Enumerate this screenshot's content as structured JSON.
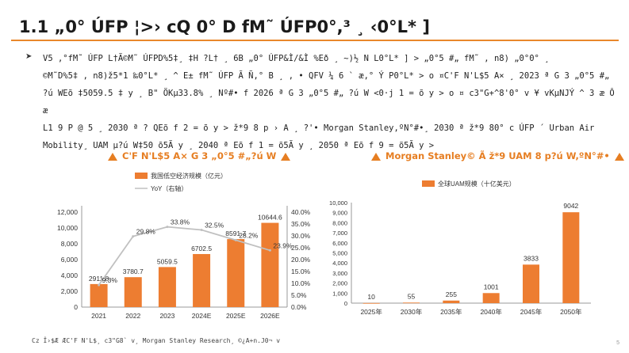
{
  "page": {
    "title": "1.1 „0° ÚFP ¦>› cQ 0° D fM˜ ÚFP0°,³ ¸ ‹0°L* ]",
    "bullet_symbol": "➤",
    "body_lines": [
      "V5 ,°fM˜ ÚFP L†Ã©M˜ ÚFPD%5‡¸ ‡H ?L† ¸ 6B „0° ÚFP&Ì/&Ì %Eð ¸ ~)½ N L0°L* ] > „0°5 #„ fM˜ , n8) „0°0° ¸",
      "©M˜D%5‡ , n8)ž5*1 ‰0°L* ¸ ^ E± fM˜ ÚFP Ã Ñ,° B ¸ ‚ • QFV ¼ 6 ` æ,° Ý P0°L* > o ¤C'F N'L$5 A× ¸ 2023 ª G 3 „0°5 #„",
      "?ú WEõ ‡5059.5 ‡ y ¸ B\" ÖKµ33.8% ¸ Nº#• f 2026 ª G 3 „0°5 #„ ?ú W <0·j 1 = õ y > o ¤ c3\"G+^8'0° v ¥ vKµNJÝ ^ 3 æ Ô æ",
      "L1 9 P @ 5 ¸ 2030 ª ? QEõ f 2 = õ y > ž*9 8 p › A ¸ ?'• Morgan Stanley,ºN°#•¸ 2030 ª ž*9 80° c ÚFP ´ Urban Air",
      "Mobility¸ UAM µ?ú W‡50 õ5Ã y ¸ 2040 ª Eõ f 1 = õ5Ã y ¸ 2050 ª Eõ f 9 = õ5Ã y >"
    ],
    "footnote": "Cz Î›$Æ ÆC'F N'L$¸ c3\"G8` v¸ Morgan Stanley Research¸ ©¿A+n.J0¬ v",
    "page_number": "5"
  },
  "chart_data": [
    {
      "type": "bar",
      "title": "C'F N'L$5 A× G 3 „0°5 #„?ú W",
      "categories": [
        "2021",
        "2022",
        "2023",
        "2024E",
        "2025E",
        "2026E"
      ],
      "series": [
        {
          "name": "我国低空经济规模（亿元）",
          "values": [
            2911.8,
            3780.7,
            5059.5,
            6702.5,
            8591.7,
            10644.6
          ],
          "color": "#ed7d31"
        }
      ],
      "ylim": [
        0,
        12000
      ],
      "yticks": [
        "0",
        "2,000",
        "4,000",
        "6,000",
        "8,000",
        "10,000",
        "12,000"
      ],
      "line": {
        "name": "YoY（右轴）",
        "values": [
          9.3,
          29.8,
          33.8,
          32.5,
          28.2,
          23.9
        ],
        "color": "#c0c0c0"
      },
      "line_labels": [
        "9.3%",
        "29.8%",
        "33.8%",
        "32.5%",
        "28.2%",
        "23.9%"
      ],
      "y2lim": [
        0,
        40
      ],
      "y2ticks": [
        "0.0%",
        "5.0%",
        "10.0%",
        "15.0%",
        "20.0%",
        "25.0%",
        "30.0%",
        "35.0%",
        "40.0%"
      ],
      "bar_labels": [
        "2911.8",
        "3780.7",
        "5059.5",
        "6702.5",
        "8591.7",
        "10644.6"
      ],
      "grid": false,
      "legend": "top-left"
    },
    {
      "type": "bar",
      "title": "Morgan Stanley© Ã ž*9 UAM 8 p?ú W,ºN°#•",
      "categories": [
        "2025年",
        "2030年",
        "2035年",
        "2040年",
        "2045年",
        "2050年"
      ],
      "series": [
        {
          "name": "全球UAM规模（十亿美元）",
          "values": [
            10,
            55,
            255,
            1001,
            3833,
            9042
          ],
          "color": "#ed7d31"
        }
      ],
      "ylim": [
        0,
        10000
      ],
      "yticks": [
        "0",
        "1,000",
        "2,000",
        "3,000",
        "4,000",
        "5,000",
        "6,000",
        "7,000",
        "8,000",
        "9,000",
        "10,000"
      ],
      "bar_labels": [
        "10",
        "55",
        "255",
        "1001",
        "3833",
        "9042"
      ],
      "grid": false,
      "legend": "top-left"
    }
  ]
}
